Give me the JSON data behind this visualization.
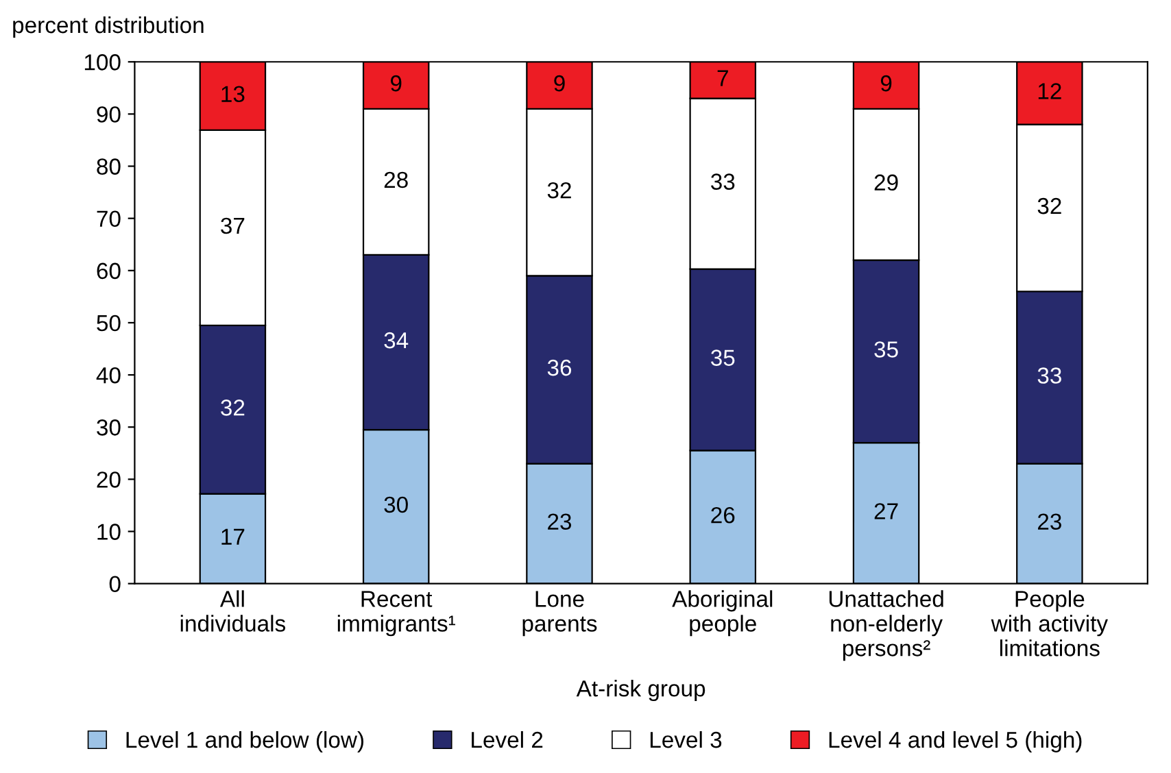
{
  "chart_data": {
    "type": "bar",
    "stacked": true,
    "ylabel": "percent distribution",
    "xlabel": "At-risk group",
    "categories": [
      "All\nindividuals",
      "Recent\nimmigrants¹",
      "Lone\nparents",
      "Aboriginal\npeople",
      "Unattached\nnon-elderly\npersons²",
      "People\nwith activity\nlimitations"
    ],
    "series": [
      {
        "name": "Level 1 and below (low)",
        "color": "#9dc3e6",
        "values": [
          17.2,
          29.5,
          23,
          25.5,
          27,
          23
        ],
        "value_labels": [
          "17",
          "30",
          "23",
          "26",
          "27",
          "23"
        ]
      },
      {
        "name": "Level 2",
        "color": "#272a6c",
        "values": [
          32.3,
          33.5,
          36,
          34.8,
          35,
          33
        ],
        "value_labels": [
          "32",
          "34",
          "36",
          "35",
          "35",
          "33"
        ]
      },
      {
        "name": "Level 3",
        "color": "#ffffff",
        "values": [
          37.4,
          28,
          32,
          32.7,
          29,
          32
        ],
        "value_labels": [
          "37",
          "28",
          "32",
          "33",
          "29",
          "32"
        ]
      },
      {
        "name": "Level 4 and level 5 (high)",
        "color": "#ed1c24",
        "values": [
          13.1,
          9,
          9,
          7,
          9,
          12
        ],
        "value_labels": [
          "13",
          "9",
          "9",
          "7",
          "9",
          "12"
        ]
      }
    ],
    "ylim": [
      0,
      100
    ],
    "yticks": [
      0,
      10,
      20,
      30,
      40,
      50,
      60,
      70,
      80,
      90,
      100
    ],
    "legend": "bottom",
    "grid": false
  }
}
